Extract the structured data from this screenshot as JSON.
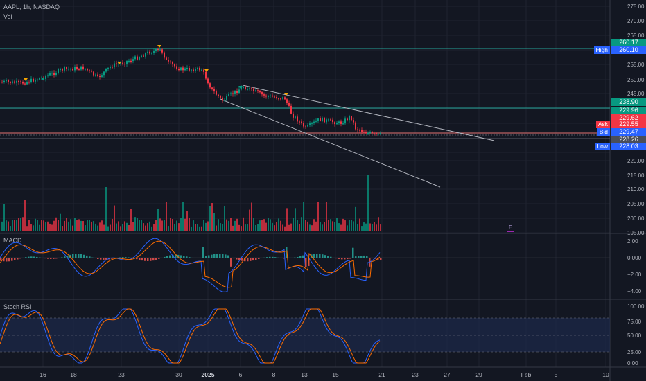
{
  "header": {
    "symbol_line": "AAPL, 1h, NASDAQ",
    "vol_label": "Vol"
  },
  "panes": {
    "macd_label": "MACD",
    "stoch_label": "Stoch RSI",
    "earnings_marker": "E"
  },
  "price_axis": {
    "ticks": [
      "275.00",
      "270.00",
      "265.00",
      "255.00",
      "250.00",
      "245.00",
      "220.00",
      "215.00",
      "210.00",
      "205.00",
      "200.00",
      "195.00"
    ],
    "tags": [
      {
        "label": "",
        "value": "260.17",
        "color": "#089981"
      },
      {
        "label": "High",
        "value": "260.10",
        "color": "#2962ff"
      },
      {
        "label": "",
        "value": "238.90",
        "color": "#089981"
      },
      {
        "label": "",
        "value": "229.96",
        "color": "#089981"
      },
      {
        "label": "",
        "value": "229.62",
        "color": "#f23645"
      },
      {
        "label": "Ask",
        "value": "229.55",
        "color": "#f23645"
      },
      {
        "label": "Bid",
        "value": "229.47",
        "color": "#2962ff"
      },
      {
        "label": "",
        "value": "228.26",
        "color": "#4a4e5a"
      },
      {
        "label": "Low",
        "value": "228.03",
        "color": "#2962ff"
      }
    ]
  },
  "macd_axis": {
    "ticks": [
      "2.00",
      "0.000",
      "−2.00",
      "−4.00"
    ]
  },
  "stoch_axis": {
    "ticks": [
      "100.00",
      "75.00",
      "50.00",
      "25.00",
      "0.00"
    ]
  },
  "time_axis": {
    "labels": [
      "16",
      "18",
      "23",
      "30",
      "2025",
      "6",
      "8",
      "13",
      "15",
      "21",
      "23",
      "27",
      "29",
      "Feb",
      "5",
      "10"
    ]
  },
  "colors": {
    "up": "#089981",
    "down": "#f23645",
    "bg": "#131722",
    "line": "#26a69a"
  }
}
